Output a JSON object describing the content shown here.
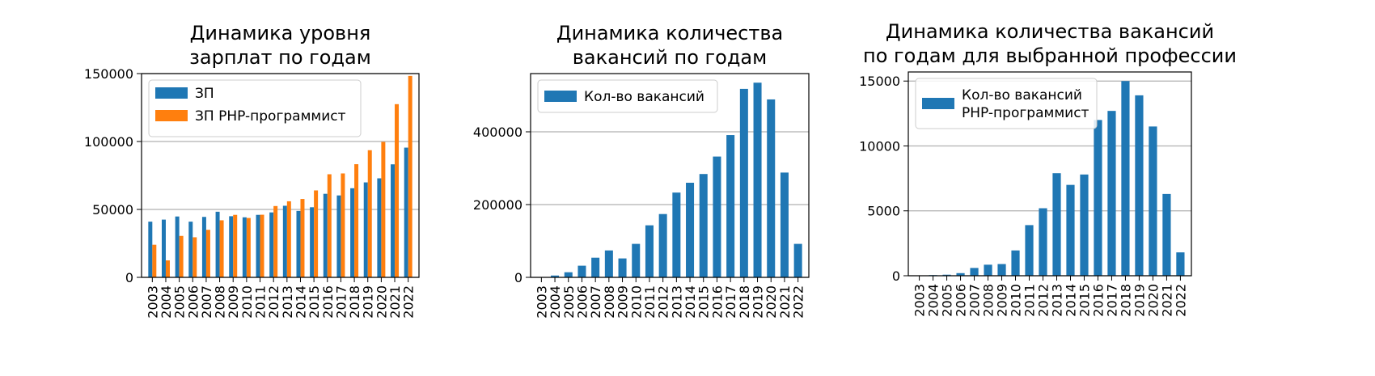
{
  "colors": {
    "blue": "#1f77b4",
    "orange": "#ff7f0e",
    "grid": "#b0b0b0"
  },
  "chart_data": [
    {
      "type": "bar",
      "title": [
        "Динамика уровня",
        "зарплат по годам"
      ],
      "categories": [
        "2003",
        "2004",
        "2005",
        "2006",
        "2007",
        "2008",
        "2009",
        "2010",
        "2011",
        "2012",
        "2013",
        "2014",
        "2015",
        "2016",
        "2017",
        "2018",
        "2019",
        "2020",
        "2021",
        "2022"
      ],
      "series": [
        {
          "name": "ЗП",
          "color": "#1f77b4",
          "values": [
            41000,
            42500,
            44800,
            41000,
            44500,
            48300,
            45000,
            44200,
            46000,
            47800,
            52700,
            48900,
            51600,
            61500,
            60300,
            65600,
            69900,
            72900,
            83200,
            95500
          ]
        },
        {
          "name": "ЗП PHP-программист",
          "color": "#ff7f0e",
          "values": [
            24000,
            12500,
            30500,
            29500,
            35000,
            42000,
            46000,
            43700,
            46100,
            52500,
            56000,
            57700,
            64000,
            75900,
            76500,
            83300,
            93600,
            99700,
            127500,
            148300
          ]
        }
      ],
      "ylim": [
        0,
        150000
      ],
      "yticks": [
        0,
        50000,
        100000,
        150000
      ],
      "grid": "y",
      "legend": "top-left",
      "xlabel": "",
      "ylabel": ""
    },
    {
      "type": "bar",
      "title": [
        "Динамика количества",
        "вакансий по годам"
      ],
      "categories": [
        "2003",
        "2004",
        "2005",
        "2006",
        "2007",
        "2008",
        "2009",
        "2010",
        "2011",
        "2012",
        "2013",
        "2014",
        "2015",
        "2016",
        "2017",
        "2018",
        "2019",
        "2020",
        "2021",
        "2022"
      ],
      "series": [
        {
          "name": "Кол-во вакансий",
          "color": "#1f77b4",
          "values": [
            0,
            5000,
            14000,
            32000,
            54000,
            74000,
            52000,
            92000,
            143000,
            174000,
            233000,
            260000,
            284000,
            332000,
            391000,
            518000,
            535000,
            489000,
            288000,
            92000
          ]
        }
      ],
      "ylim": [
        0,
        560000
      ],
      "yticks": [
        0,
        200000,
        400000
      ],
      "grid": "y",
      "legend": "top-left",
      "xlabel": "",
      "ylabel": ""
    },
    {
      "type": "bar",
      "title": [
        "Динамика количества вакансий",
        "по годам для выбранной профессии"
      ],
      "categories": [
        "2003",
        "2004",
        "2005",
        "2006",
        "2007",
        "2008",
        "2009",
        "2010",
        "2011",
        "2012",
        "2013",
        "2014",
        "2015",
        "2016",
        "2017",
        "2018",
        "2019",
        "2020",
        "2021",
        "2022"
      ],
      "series": [
        {
          "name": "Кол-во вакансий\nPHP-программист",
          "color": "#1f77b4",
          "values": [
            0,
            50,
            80,
            200,
            600,
            850,
            900,
            1950,
            3900,
            5200,
            7900,
            7000,
            7800,
            12000,
            12700,
            15000,
            13900,
            11500,
            6300,
            1800
          ]
        }
      ],
      "ylim": [
        0,
        15700
      ],
      "yticks": [
        0,
        5000,
        10000,
        15000
      ],
      "grid": "y",
      "legend": "top-left",
      "xlabel": "",
      "ylabel": ""
    }
  ]
}
